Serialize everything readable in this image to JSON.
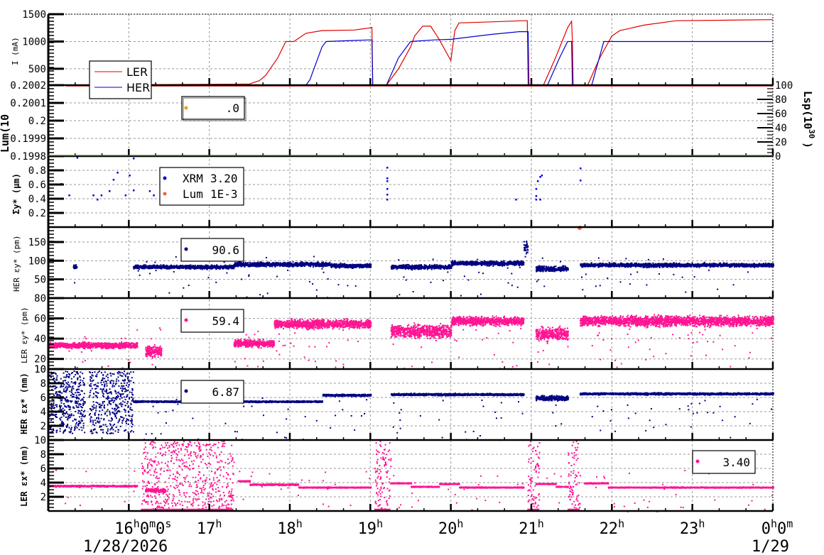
{
  "chart_data": [
    {
      "id": "current",
      "type": "line",
      "ylabel": "I (mA)",
      "ylim": [
        200,
        1500
      ],
      "yticks": [
        500,
        1000,
        1500
      ],
      "legend": {
        "entries": [
          {
            "label": "LER",
            "color": "#e00000"
          },
          {
            "label": "HER",
            "color": "#0000d0"
          }
        ]
      },
      "series": [
        {
          "name": "LER",
          "color": "#e00000",
          "points": [
            [
              15.0,
              200
            ],
            [
              17.5,
              220
            ],
            [
              17.55,
              250
            ],
            [
              17.62,
              280
            ],
            [
              17.7,
              380
            ],
            [
              17.85,
              700
            ],
            [
              17.95,
              1000
            ],
            [
              18.05,
              1000
            ],
            [
              18.2,
              1150
            ],
            [
              18.4,
              1200
            ],
            [
              18.8,
              1210
            ],
            [
              19.0,
              1250
            ],
            [
              19.02,
              1260
            ],
            [
              19.03,
              200
            ],
            [
              19.2,
              200
            ],
            [
              19.35,
              500
            ],
            [
              19.5,
              900
            ],
            [
              19.55,
              1100
            ],
            [
              19.65,
              1280
            ],
            [
              19.75,
              1280
            ],
            [
              19.85,
              1050
            ],
            [
              20.0,
              650
            ],
            [
              20.05,
              1200
            ],
            [
              20.1,
              1340
            ],
            [
              20.5,
              1360
            ],
            [
              20.9,
              1380
            ],
            [
              20.95,
              1380
            ],
            [
              20.96,
              200
            ],
            [
              21.15,
              200
            ],
            [
              21.3,
              700
            ],
            [
              21.45,
              1250
            ],
            [
              21.5,
              1370
            ],
            [
              21.51,
              1000
            ],
            [
              21.52,
              200
            ],
            [
              21.7,
              200
            ],
            [
              21.85,
              700
            ],
            [
              22.0,
              1100
            ],
            [
              22.1,
              1200
            ],
            [
              22.4,
              1300
            ],
            [
              22.8,
              1380
            ],
            [
              24.0,
              1400
            ]
          ]
        },
        {
          "name": "HER",
          "color": "#0000d0",
          "points": [
            [
              15.0,
              200
            ],
            [
              18.2,
              200
            ],
            [
              18.25,
              300
            ],
            [
              18.4,
              900
            ],
            [
              18.45,
              1000
            ],
            [
              19.0,
              1030
            ],
            [
              19.02,
              1030
            ],
            [
              19.03,
              200
            ],
            [
              19.2,
              200
            ],
            [
              19.35,
              700
            ],
            [
              19.5,
              1000
            ],
            [
              19.8,
              1030
            ],
            [
              20.0,
              1040
            ],
            [
              20.5,
              1130
            ],
            [
              20.85,
              1180
            ],
            [
              20.96,
              1180
            ],
            [
              20.97,
              200
            ],
            [
              21.2,
              200
            ],
            [
              21.35,
              700
            ],
            [
              21.45,
              1000
            ],
            [
              21.5,
              1000
            ],
            [
              21.51,
              200
            ],
            [
              21.75,
              200
            ],
            [
              21.9,
              1000
            ],
            [
              24.0,
              1000
            ]
          ]
        }
      ]
    },
    {
      "id": "luminosity",
      "type": "scatter",
      "ylabel": "Lum(10",
      "ylim": [
        0.1998,
        0.2002
      ],
      "yticks": [
        "0.1998",
        "0.1999",
        "0.2",
        "0.2001",
        "0.2002"
      ],
      "y2label": "Lsp(10^30)",
      "y2ticks": [
        0,
        20,
        40,
        60,
        80,
        100
      ],
      "legend": {
        "entries": [
          {
            "label": ".0",
            "color": "#f0a000"
          }
        ]
      }
    },
    {
      "id": "sigma_y",
      "type": "scatter",
      "ylabel": "Σy* (μm)",
      "ylim": [
        0,
        1.0
      ],
      "yticks": [
        "0.2",
        "0.4",
        "0.6",
        "0.8"
      ],
      "legend": {
        "entries": [
          {
            "label": "XRM",
            "value": "3.20",
            "color": "#0000e0"
          },
          {
            "label": "Lum",
            "value": "1E-3",
            "color": "#f06040"
          }
        ]
      }
    },
    {
      "id": "her_eps_y",
      "type": "scatter",
      "ylabel": "HER εy* (pm)",
      "ylim": [
        0,
        190
      ],
      "yticks": [
        50,
        100,
        150
      ],
      "color": "#000080",
      "legend": {
        "entries": [
          {
            "label": "",
            "value": "90.6",
            "color": "#000080"
          }
        ]
      },
      "segments": [
        [
          15.3,
          15.35,
          85,
          8
        ],
        [
          16.05,
          17.3,
          85,
          7
        ],
        [
          17.3,
          18.5,
          92,
          8
        ],
        [
          18.5,
          19.0,
          88,
          7
        ],
        [
          19.25,
          20.0,
          85,
          8
        ],
        [
          20.0,
          20.9,
          95,
          8
        ],
        [
          20.9,
          20.95,
          140,
          25
        ],
        [
          21.05,
          21.45,
          80,
          10
        ],
        [
          21.6,
          24.0,
          90,
          7
        ]
      ]
    },
    {
      "id": "ler_eps_y",
      "type": "scatter",
      "ylabel": "LER εy* (pm)",
      "ylim": [
        10,
        80
      ],
      "yticks": [
        10,
        20,
        40,
        60,
        80
      ],
      "color": "#ff1493",
      "legend": {
        "entries": [
          {
            "label": "",
            "value": "59.4",
            "color": "#ff1493"
          }
        ]
      },
      "segments": [
        [
          15.0,
          16.1,
          34,
          4
        ],
        [
          16.2,
          16.4,
          28,
          8
        ],
        [
          17.3,
          17.8,
          36,
          5
        ],
        [
          17.8,
          19.0,
          55,
          6
        ],
        [
          19.25,
          20.0,
          48,
          9
        ],
        [
          20.0,
          20.9,
          58,
          6
        ],
        [
          21.05,
          21.45,
          45,
          9
        ],
        [
          21.6,
          24.0,
          58,
          7
        ]
      ]
    },
    {
      "id": "her_eps_x",
      "type": "scatter",
      "ylabel": "HER εx* (nm)",
      "ylim": [
        0,
        10
      ],
      "yticks": [
        2,
        4,
        6,
        8,
        10
      ],
      "color": "#000080",
      "legend": {
        "entries": [
          {
            "label": "",
            "value": "6.87",
            "color": "#000080"
          }
        ]
      },
      "segments": [
        [
          16.05,
          18.4,
          5.5,
          0.15
        ],
        [
          18.4,
          19.0,
          6.4,
          0.2
        ],
        [
          19.25,
          20.9,
          6.5,
          0.2
        ],
        [
          21.05,
          21.45,
          6.0,
          0.5
        ],
        [
          21.6,
          24.0,
          6.6,
          0.2
        ]
      ],
      "noise_region": [
        15.0,
        16.05,
        1.0,
        9.8
      ]
    },
    {
      "id": "ler_eps_x",
      "type": "scatter",
      "ylabel": "LER εx* (nm)",
      "ylim": [
        0,
        10
      ],
      "yticks": [
        2,
        4,
        6,
        8,
        10
      ],
      "color": "#ff1493",
      "legend": {
        "entries": [
          {
            "label": "",
            "value": "3.40",
            "color": "#ff1493"
          }
        ]
      },
      "segments": [
        [
          15.0,
          16.1,
          3.6,
          0.15
        ],
        [
          16.2,
          16.45,
          3.0,
          0.4
        ],
        [
          17.35,
          17.5,
          4.3,
          0.1
        ],
        [
          17.5,
          18.1,
          3.8,
          0.15
        ],
        [
          18.1,
          19.0,
          3.4,
          0.1
        ],
        [
          19.25,
          19.5,
          4.0,
          0.1
        ],
        [
          19.5,
          19.85,
          3.5,
          0.1
        ],
        [
          19.85,
          20.1,
          3.9,
          0.1
        ],
        [
          20.1,
          20.9,
          3.4,
          0.1
        ],
        [
          21.05,
          21.3,
          3.9,
          0.1
        ],
        [
          21.3,
          21.45,
          3.5,
          0.1
        ],
        [
          21.65,
          21.95,
          4.0,
          0.1
        ],
        [
          21.95,
          24.0,
          3.4,
          0.1
        ]
      ]
    }
  ],
  "x_axis": {
    "range_hours": [
      15,
      24
    ],
    "ticks": [
      {
        "hour": 16,
        "label": "16",
        "sup": "h",
        "extra": "0",
        "sup2": "m",
        "extra2": "0",
        "sup3": "s"
      },
      {
        "hour": 17,
        "label": "17",
        "sup": "h"
      },
      {
        "hour": 18,
        "label": "18",
        "sup": "h"
      },
      {
        "hour": 19,
        "label": "19",
        "sup": "h"
      },
      {
        "hour": 20,
        "label": "20",
        "sup": "h"
      },
      {
        "hour": 21,
        "label": "21",
        "sup": "h"
      },
      {
        "hour": 22,
        "label": "22",
        "sup": "h"
      },
      {
        "hour": 23,
        "label": "23",
        "sup": "h"
      },
      {
        "hour": 24,
        "label": "0",
        "sup": "h",
        "extra": "0",
        "sup2": "m"
      }
    ],
    "date_start": "1/28/2026",
    "date_end": "1/29"
  },
  "labels": {
    "current_axis": "I (mA)",
    "lum_axis": "Lum(10",
    "lsp_axis": "Lsp(10",
    "lsp_exp": "30",
    "sigma_axis": "Σy* (μm)",
    "her_eps_y_axis": "HER εy* (pm)",
    "ler_eps_y_axis": "LER εy* (pm)",
    "her_eps_x_axis": "HER εx* (nm)",
    "ler_eps_x_axis": "LER εx* (nm)",
    "legend_ler": "LER",
    "legend_her": "HER",
    "lum_value": ".0",
    "xrm_label": "XRM",
    "xrm_value": "3.20",
    "lumleg_label": "Lum",
    "lumleg_value": "1E-3",
    "her_eps_y_value": "90.6",
    "ler_eps_y_value": "59.4",
    "her_eps_x_value": "6.87",
    "ler_eps_x_value": "3.40",
    "date_start": "1/28/2026",
    "date_end": "1/29"
  }
}
